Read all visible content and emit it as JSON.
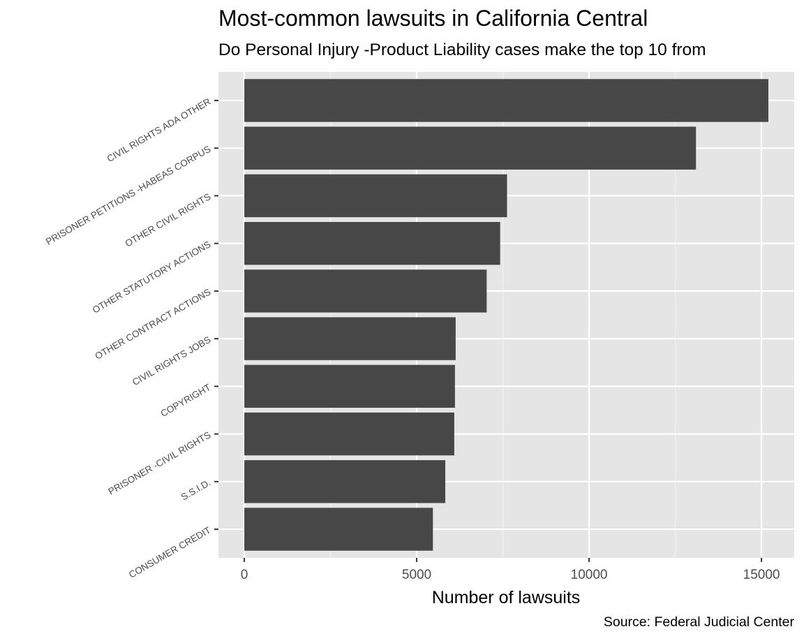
{
  "chart_data": {
    "type": "bar",
    "orientation": "horizontal",
    "title": "Most-common lawsuits in California Central",
    "subtitle": "Do Personal Injury -Product Liability cases make the top 10 from",
    "caption": "Source: Federal Judicial Center",
    "xlabel": "Number of lawsuits",
    "ylabel": "",
    "xlim": [
      -750,
      15950
    ],
    "xticks": [
      0,
      5000,
      10000,
      15000
    ],
    "categories": [
      "CIVIL RIGHTS ADA OTHER",
      "PRISONER PETITIONS -HABEAS CORPUS",
      "OTHER CIVIL RIGHTS",
      "OTHER STATUTORY ACTIONS",
      "OTHER CONTRACT ACTIONS",
      "CIVIL RIGHTS JOBS",
      "COPYRIGHT",
      "PRISONER -CIVIL RIGHTS",
      "S.S.I.D.",
      "CONSUMER CREDIT"
    ],
    "values": [
      15200,
      13100,
      7620,
      7420,
      7030,
      6130,
      6110,
      6090,
      5830,
      5470
    ],
    "grid": true,
    "bar_color": "#474747",
    "panel_color": "#e5e5e5"
  }
}
